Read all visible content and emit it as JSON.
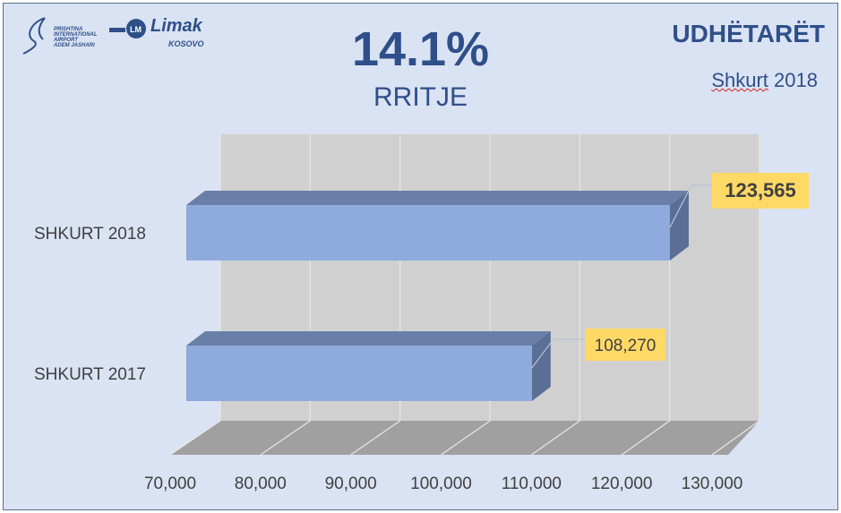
{
  "header": {
    "growth_value": "14.1%",
    "growth_label": "RRITJE",
    "title": "UDHËTARËT",
    "period_prefix": "Shkurt",
    "period_year": "2018"
  },
  "logos": {
    "airport": "PRISHTINA INTERNATIONAL AIRPORT ADEM JASHARI",
    "operator": "Limak",
    "operator_sub": "KOSOVO"
  },
  "colors": {
    "background": "#dae3f3",
    "bar_front": "#8faadc",
    "bar_top": "#6a7fa8",
    "bar_side": "#5a6e96",
    "label_bg": "#ffd966",
    "title": "#2f4f8a"
  },
  "chart_data": {
    "type": "bar",
    "orientation": "horizontal-3d",
    "categories": [
      "SHKURT 2018",
      "SHKURT 2017"
    ],
    "values": [
      123565,
      108270
    ],
    "data_labels": [
      "123,565",
      "108,270"
    ],
    "xlim": [
      70000,
      130000
    ],
    "xticks": [
      70000,
      80000,
      90000,
      100000,
      110000,
      120000,
      130000
    ],
    "xtick_labels": [
      "70,000",
      "80,000",
      "90,000",
      "100,000",
      "110,000",
      "120,000",
      "130,000"
    ],
    "grid": true,
    "title": "14.1%",
    "xlabel": "",
    "ylabel": ""
  }
}
